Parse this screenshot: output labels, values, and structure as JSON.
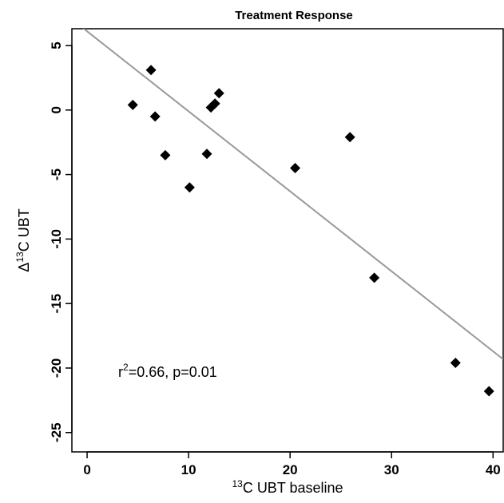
{
  "chart_data": {
    "type": "scatter",
    "title": "Treatment Response",
    "xlabel": {
      "sup": "13",
      "text": "C UBT baseline"
    },
    "ylabel": {
      "prefix": "Δ",
      "sup": "13",
      "text": "C UBT"
    },
    "xlim": [
      -1.5,
      41
    ],
    "ylim": [
      -26.5,
      6.3
    ],
    "x_ticks": [
      0,
      10,
      20,
      30,
      40
    ],
    "y_ticks": [
      5,
      0,
      -5,
      -10,
      -15,
      -20,
      -25
    ],
    "grid": false,
    "points": [
      {
        "x": 4.5,
        "y": 0.4
      },
      {
        "x": 6.3,
        "y": 3.1
      },
      {
        "x": 6.7,
        "y": -0.5
      },
      {
        "x": 7.7,
        "y": -3.5
      },
      {
        "x": 10.1,
        "y": -6.0
      },
      {
        "x": 11.8,
        "y": -3.4
      },
      {
        "x": 12.2,
        "y": 0.2
      },
      {
        "x": 12.6,
        "y": 0.5
      },
      {
        "x": 13.0,
        "y": 1.3
      },
      {
        "x": 20.5,
        "y": -4.5
      },
      {
        "x": 25.9,
        "y": -2.1
      },
      {
        "x": 28.3,
        "y": -13.0
      },
      {
        "x": 36.3,
        "y": -19.6
      },
      {
        "x": 39.6,
        "y": -21.8
      }
    ],
    "fit_line": {
      "intercept": 6.1,
      "slope": -0.62,
      "color": "#999999"
    },
    "annotation": {
      "prefix": "r",
      "sup": "2",
      "text": "=0.66, p=0.01"
    },
    "marker_color": "#000000"
  }
}
